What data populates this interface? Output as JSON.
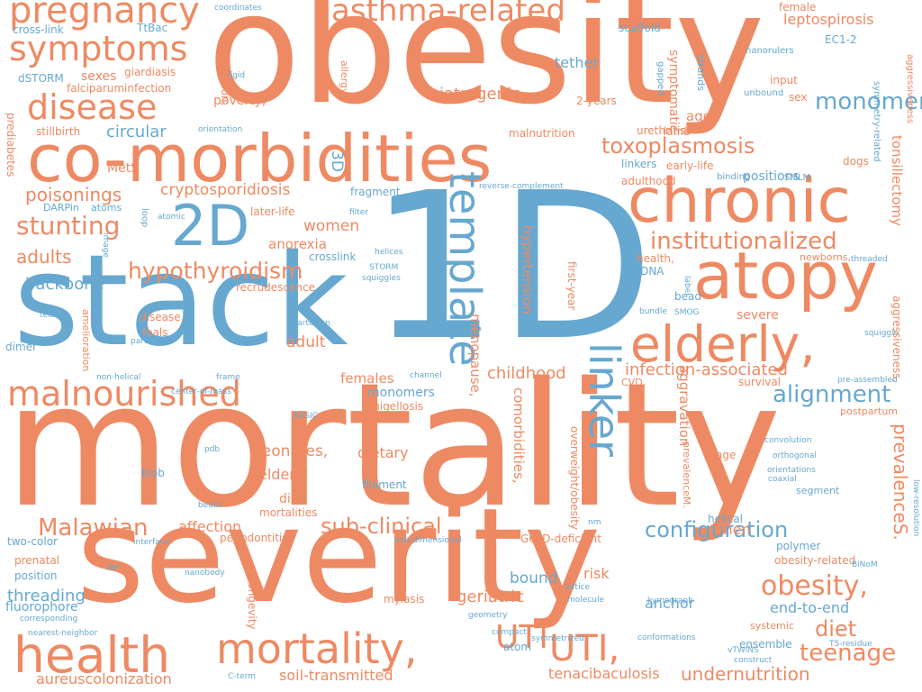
{
  "colors": {
    "orange": "#ee8a63",
    "blue": "#67a8d0",
    "background": "#ffffff"
  },
  "words": [
    {
      "text": "mortality",
      "color": "orange"
    },
    {
      "text": "obesity",
      "color": "orange"
    },
    {
      "text": "1D",
      "color": "blue"
    },
    {
      "text": "severity",
      "color": "orange"
    },
    {
      "text": "stack",
      "color": "blue"
    },
    {
      "text": "co-morbidities",
      "color": "orange"
    },
    {
      "text": "chronic",
      "color": "orange"
    },
    {
      "text": "atopy",
      "color": "orange"
    },
    {
      "text": "elderly,",
      "color": "orange"
    },
    {
      "text": "health",
      "color": "orange"
    },
    {
      "text": "mortality,",
      "color": "orange"
    },
    {
      "text": "malnourished",
      "color": "orange"
    },
    {
      "text": "2D",
      "color": "blue"
    },
    {
      "text": "template",
      "color": "blue"
    },
    {
      "text": "linker",
      "color": "blue"
    },
    {
      "text": "pregnancy",
      "color": "orange"
    },
    {
      "text": "symptoms",
      "color": "orange"
    },
    {
      "text": "disease",
      "color": "orange"
    },
    {
      "text": "asthma-related",
      "color": "orange"
    },
    {
      "text": "UTI",
      "color": "orange"
    },
    {
      "text": "UTI,",
      "color": "orange"
    },
    {
      "text": "institutionalized",
      "color": "orange"
    },
    {
      "text": "toxoplasmosis",
      "color": "orange"
    },
    {
      "text": "hypothyroidism",
      "color": "orange"
    },
    {
      "text": "monomer",
      "color": "blue"
    },
    {
      "text": "stunting",
      "color": "orange"
    },
    {
      "text": "alignment",
      "color": "blue"
    },
    {
      "text": "obesity,",
      "color": "orange"
    },
    {
      "text": "teenage",
      "color": "orange"
    },
    {
      "text": "diet",
      "color": "orange"
    },
    {
      "text": "configuration",
      "color": "blue"
    },
    {
      "text": "sub-clinical",
      "color": "orange"
    },
    {
      "text": "Malawian",
      "color": "orange"
    },
    {
      "text": "prevalenceS.",
      "color": "orange"
    },
    {
      "text": "poisonings",
      "color": "orange"
    },
    {
      "text": "adults",
      "color": "orange"
    },
    {
      "text": "cryptosporidiosis",
      "color": "orange"
    },
    {
      "text": "women",
      "color": "orange"
    },
    {
      "text": "iatrogenic",
      "color": "orange"
    },
    {
      "text": "circular",
      "color": "blue"
    },
    {
      "text": "backbone",
      "color": "blue"
    },
    {
      "text": "infection-associated",
      "color": "orange"
    },
    {
      "text": "childhood",
      "color": "orange"
    },
    {
      "text": "neonates,",
      "color": "orange"
    },
    {
      "text": "elderly",
      "color": "orange"
    },
    {
      "text": "dietary",
      "color": "orange"
    },
    {
      "text": "geriatric",
      "color": "orange"
    },
    {
      "text": "anchor",
      "color": "blue"
    },
    {
      "text": "bound",
      "color": "blue"
    },
    {
      "text": "end-to-end",
      "color": "blue"
    },
    {
      "text": "undernutrition",
      "color": "orange"
    },
    {
      "text": "soil-transmitted",
      "color": "orange"
    },
    {
      "text": "aureuscolonization",
      "color": "orange"
    },
    {
      "text": "tenacibaculosis",
      "color": "orange"
    },
    {
      "text": "affection",
      "color": "orange"
    },
    {
      "text": "risk",
      "color": "orange"
    },
    {
      "text": "threading",
      "color": "blue"
    },
    {
      "text": "positions",
      "color": "blue"
    },
    {
      "text": "leptospirosis",
      "color": "orange"
    },
    {
      "text": "hypertension",
      "color": "orange"
    },
    {
      "text": "menopause,",
      "color": "orange"
    },
    {
      "text": "comorbidities,",
      "color": "orange"
    },
    {
      "text": "tonsillectomy",
      "color": "orange"
    },
    {
      "text": "anorexia",
      "color": "orange"
    },
    {
      "text": "adult",
      "color": "orange"
    },
    {
      "text": "females",
      "color": "orange"
    },
    {
      "text": "monomers",
      "color": "blue"
    },
    {
      "text": "severe",
      "color": "orange"
    },
    {
      "text": "aggravation",
      "color": "orange"
    },
    {
      "text": "men",
      "color": "orange"
    },
    {
      "text": "diet,",
      "color": "orange"
    },
    {
      "text": "sexes",
      "color": "orange"
    },
    {
      "text": "age,",
      "color": "orange"
    },
    {
      "text": "tether",
      "color": "blue"
    },
    {
      "text": "3D",
      "color": "blue"
    },
    {
      "text": "poverty,",
      "color": "orange"
    },
    {
      "text": "malnutrition,",
      "color": "orange"
    },
    {
      "text": "symptomatic",
      "color": "orange"
    },
    {
      "text": "shigellosis",
      "color": "orange"
    },
    {
      "text": "prenatal",
      "color": "orange"
    },
    {
      "text": "myiasis",
      "color": "orange"
    },
    {
      "text": "obesity-related",
      "color": "orange"
    },
    {
      "text": "G6PD-deficient",
      "color": "orange"
    },
    {
      "text": "fluorophore",
      "color": "blue"
    },
    {
      "text": "two-color",
      "color": "blue"
    },
    {
      "text": "position",
      "color": "blue"
    },
    {
      "text": "crosslink",
      "color": "blue"
    },
    {
      "text": "filament",
      "color": "blue"
    },
    {
      "text": "recrudescence",
      "color": "orange"
    },
    {
      "text": "periodontitis,",
      "color": "orange"
    },
    {
      "text": "mortalities",
      "color": "orange"
    },
    {
      "text": "later-life",
      "color": "orange"
    },
    {
      "text": "foals",
      "color": "orange"
    },
    {
      "text": "disease,",
      "color": "orange"
    },
    {
      "text": "stillbirth",
      "color": "orange"
    },
    {
      "text": "giardiasis",
      "color": "orange"
    },
    {
      "text": "falciparuminfection",
      "color": "orange"
    },
    {
      "text": "malnutrition",
      "color": "orange"
    },
    {
      "text": "urethritis",
      "color": "orange"
    },
    {
      "text": "lamb",
      "color": "orange"
    },
    {
      "text": "sex",
      "color": "orange"
    },
    {
      "text": "female",
      "color": "orange"
    },
    {
      "text": "input",
      "color": "orange"
    },
    {
      "text": "EC1-2",
      "color": "blue"
    },
    {
      "text": "scaffold",
      "color": "blue"
    },
    {
      "text": "TtBac",
      "color": "blue"
    },
    {
      "text": "cross-link",
      "color": "blue"
    },
    {
      "text": "dSTORM",
      "color": "blue"
    },
    {
      "text": "coordinates",
      "color": "blue"
    },
    {
      "text": "rigid",
      "color": "blue"
    },
    {
      "text": "orientation",
      "color": "blue"
    },
    {
      "text": "2-years",
      "color": "orange"
    },
    {
      "text": "gapped",
      "color": "blue"
    },
    {
      "text": "strands",
      "color": "blue"
    },
    {
      "text": "nanorulers",
      "color": "blue"
    },
    {
      "text": "unbound",
      "color": "blue"
    },
    {
      "text": "symmetry-related",
      "color": "blue"
    },
    {
      "text": "aggressiveness",
      "color": "orange"
    },
    {
      "text": "dogs",
      "color": "orange"
    },
    {
      "text": "linkers",
      "color": "blue"
    },
    {
      "text": "early-life",
      "color": "orange"
    },
    {
      "text": "binding",
      "color": "blue"
    },
    {
      "text": "adulthood",
      "color": "orange"
    },
    {
      "text": "fragment",
      "color": "blue"
    },
    {
      "text": "reverse-complement",
      "color": "blue"
    },
    {
      "text": "SMLM",
      "color": "blue"
    },
    {
      "text": "prediabetes",
      "color": "orange"
    },
    {
      "text": "MetS",
      "color": "orange"
    },
    {
      "text": "DARPin",
      "color": "blue"
    },
    {
      "text": "atoms",
      "color": "blue"
    },
    {
      "text": "loop",
      "color": "blue"
    },
    {
      "text": "atomic",
      "color": "blue"
    },
    {
      "text": "filter",
      "color": "blue"
    },
    {
      "text": "helices",
      "color": "blue"
    },
    {
      "text": "STORM",
      "color": "blue"
    },
    {
      "text": "squiggles",
      "color": "blue"
    },
    {
      "text": "newborns,",
      "color": "orange"
    },
    {
      "text": "threaded",
      "color": "blue"
    },
    {
      "text": "health,",
      "color": "orange"
    },
    {
      "text": "oxDNA",
      "color": "blue"
    },
    {
      "text": "bead",
      "color": "blue"
    },
    {
      "text": "label",
      "color": "blue"
    },
    {
      "text": "bundle",
      "color": "blue"
    },
    {
      "text": "SMOG",
      "color": "blue"
    },
    {
      "text": "first-year",
      "color": "orange"
    },
    {
      "text": "squiggle",
      "color": "blue"
    },
    {
      "text": "aggressiveness,",
      "color": "orange"
    },
    {
      "text": "pre-assembled",
      "color": "blue"
    },
    {
      "text": "survival",
      "color": "orange"
    },
    {
      "text": "CVD,",
      "color": "orange"
    },
    {
      "text": "postpartum",
      "color": "orange"
    },
    {
      "text": "Cartesian",
      "color": "blue"
    },
    {
      "text": "particle",
      "color": "blue"
    },
    {
      "text": "tethers",
      "color": "blue"
    },
    {
      "text": "dimer",
      "color": "blue"
    },
    {
      "text": "amelioration",
      "color": "orange"
    },
    {
      "text": "non-helical",
      "color": "blue"
    },
    {
      "text": "frame",
      "color": "blue"
    },
    {
      "text": "channel",
      "color": "blue"
    },
    {
      "text": "center-of-mass",
      "color": "blue"
    },
    {
      "text": "BASIC",
      "color": "blue"
    },
    {
      "text": "pdb",
      "color": "blue"
    },
    {
      "text": "blob",
      "color": "blue"
    },
    {
      "text": "beads",
      "color": "blue"
    },
    {
      "text": "image",
      "color": "blue"
    },
    {
      "text": "convolution",
      "color": "blue"
    },
    {
      "text": "orthogonal",
      "color": "blue"
    },
    {
      "text": "orientations",
      "color": "blue"
    },
    {
      "text": "coaxial",
      "color": "blue"
    },
    {
      "text": "segment",
      "color": "blue"
    },
    {
      "text": "prevalenceM.",
      "color": "orange"
    },
    {
      "text": "overweight/obesity",
      "color": "orange"
    },
    {
      "text": "age",
      "color": "orange"
    },
    {
      "text": "helical",
      "color": "blue"
    },
    {
      "text": "polymer",
      "color": "blue"
    },
    {
      "text": "low-resolution",
      "color": "blue"
    },
    {
      "text": "interface",
      "color": "blue"
    },
    {
      "text": "one-dimensional",
      "color": "blue"
    },
    {
      "text": "nm",
      "color": "blue"
    },
    {
      "text": "iBP",
      "color": "blue"
    },
    {
      "text": "nanobody",
      "color": "blue"
    },
    {
      "text": "longevity",
      "color": "orange"
    },
    {
      "text": "corresponding",
      "color": "blue"
    },
    {
      "text": "nearest-neighbor",
      "color": "blue"
    },
    {
      "text": "geometry",
      "color": "blue"
    },
    {
      "text": "compact",
      "color": "blue"
    },
    {
      "text": "atom",
      "color": "blue"
    },
    {
      "text": "symmetrized",
      "color": "blue"
    },
    {
      "text": "C-term",
      "color": "blue"
    },
    {
      "text": "lattice",
      "color": "blue"
    },
    {
      "text": "molecule",
      "color": "blue"
    },
    {
      "text": "kymograph",
      "color": "blue"
    },
    {
      "text": "BiNoM",
      "color": "blue"
    },
    {
      "text": "conformations",
      "color": "blue"
    },
    {
      "text": "ensemble",
      "color": "blue"
    },
    {
      "text": "vTWINS",
      "color": "blue"
    },
    {
      "text": "construct",
      "color": "blue"
    },
    {
      "text": "T5-residue",
      "color": "blue"
    },
    {
      "text": "systemic",
      "color": "orange"
    },
    {
      "text": "allergy,",
      "color": "orange"
    }
  ]
}
